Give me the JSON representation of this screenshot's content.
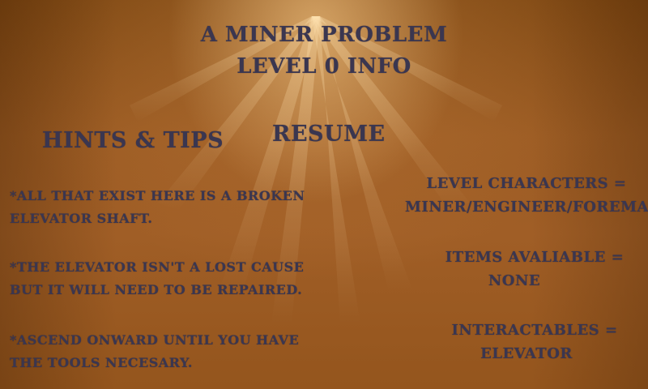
{
  "title": {
    "game_name": "A Miner Problem",
    "level_info": "Level 0 Info"
  },
  "hints": {
    "heading": "Hints & Tips",
    "items": [
      "*All that exist here is a broken\nelevator shaft.",
      "*The elevator isn't a lost cause\nbut it will need to be repaired.",
      "*Ascend onward until you have\nthe tools necesary."
    ]
  },
  "menu": {
    "resume_label": "Resume"
  },
  "level_details": {
    "characters_label": "Level Characters =",
    "characters_value": "Miner/Engineer/Foreman",
    "items_label": "Items Avaliable =",
    "items_value": "None",
    "interactables_label": "Interactables =",
    "interactables_value": "Elevator"
  },
  "colors": {
    "text": "#3a3650",
    "background": "#9a5a22",
    "glow": "#ffd796"
  }
}
